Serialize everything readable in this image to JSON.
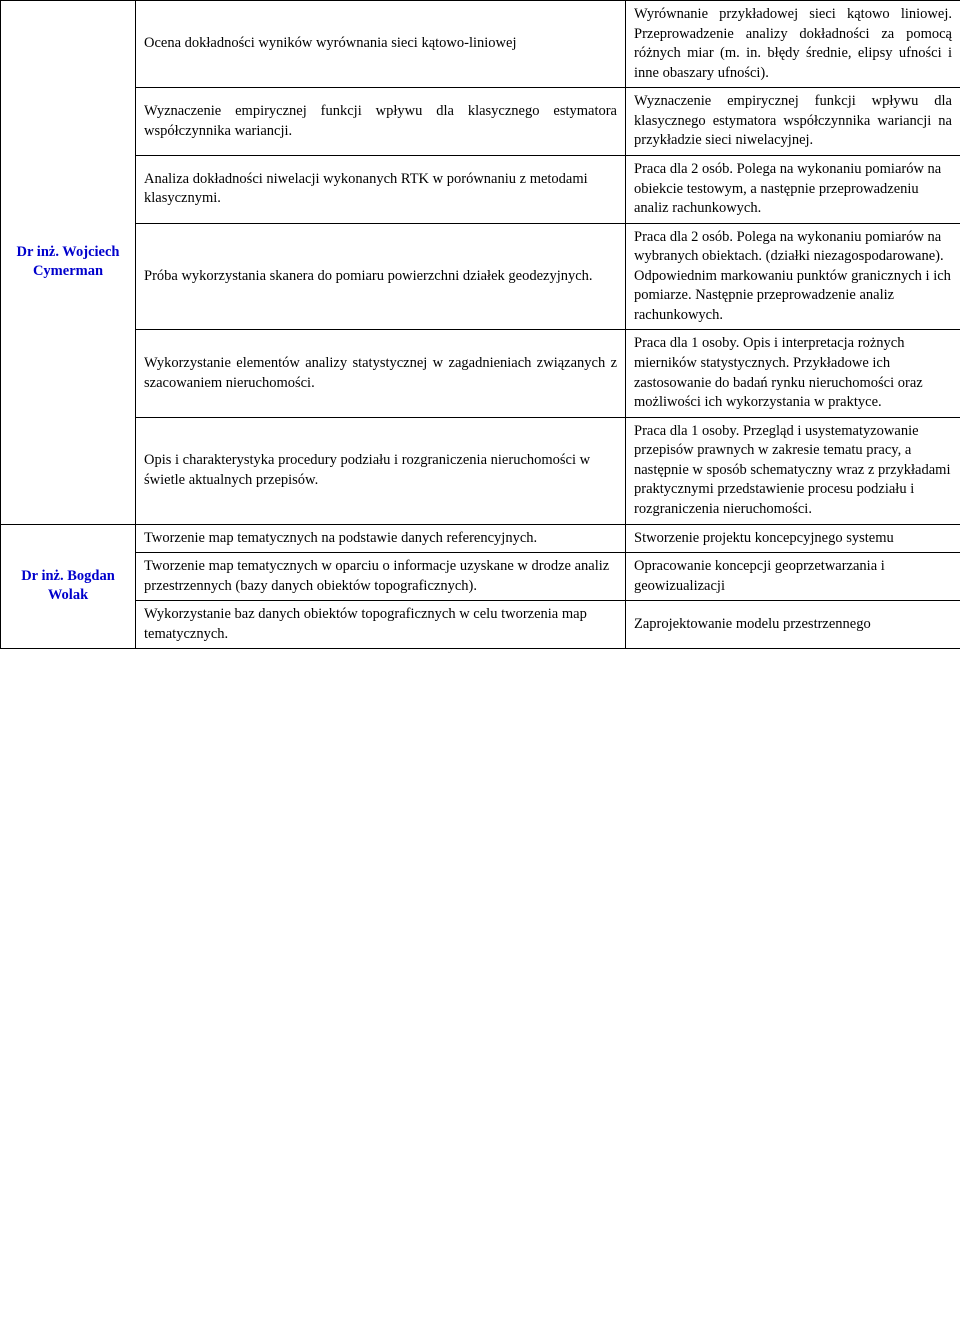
{
  "supervisors": {
    "cymerman": "Dr inż. Wojciech Cymerman",
    "wolak": "Dr inż. Bogdan Wolak"
  },
  "rows": [
    {
      "topic": "Ocena dokładności wyników wyrównania sieci kątowo-liniowej",
      "topic_align": "justify",
      "desc": "Wyrównanie przykładowej sieci kątowo liniowej. Przeprowadzenie analizy dokładności za pomocą różnych miar (m. in. błędy średnie, elipsy ufności i inne obaszary ufności).",
      "desc_align": "justify"
    },
    {
      "topic": "Wyznaczenie empirycznej funkcji wpływu dla klasycznego estymatora współczynnika wariancji.",
      "topic_align": "justify",
      "desc": "Wyznaczenie empirycznej funkcji wpływu dla klasycznego estymatora współczynnika wariancji na przykładzie sieci niwelacyjnej.",
      "desc_align": "justify"
    },
    {
      "topic": " Analiza dokładności niwelacji wykonanych RTK w porównaniu z metodami klasycznymi.",
      "topic_align": "left",
      "desc": " Praca dla 2 osób. Polega na wykonaniu pomiarów na obiekcie testowym, a następnie przeprowadzeniu analiz rachunkowych.",
      "desc_align": "left"
    },
    {
      "topic": " Próba wykorzystania skanera do pomiaru powierzchni działek geodezyjnych.",
      "topic_align": "justify",
      "desc": " Praca dla 2 osób. Polega na wykonaniu pomiarów na wybranych obiektach. (działki niezagospodarowane). Odpowiednim markowaniu punktów granicznych i ich pomiarze. Następnie przeprowadzenie analiz rachunkowych.",
      "desc_align": "left"
    },
    {
      "topic": " Wykorzystanie elementów analizy statystycznej w zagadnieniach związanych z szacowaniem nieruchomości.",
      "topic_align": "justify",
      "desc": "Praca dla 1 osoby. Opis i interpretacja rożnych mierników statystycznych. Przykładowe ich zastosowanie do badań rynku nieruchomości oraz możliwości ich wykorzystania w praktyce.",
      "desc_align": "left"
    },
    {
      "topic": " Opis i charakterystyka procedury podziału i rozgraniczenia nieruchomości w świetle aktualnych przepisów.",
      "topic_align": "left",
      "desc": "Praca dla 1 osoby. Przegląd i usystematyzowanie przepisów prawnych w zakresie tematu pracy, a następnie w sposób schematyczny wraz z przykładami praktycznymi przedstawienie procesu podziału i rozgraniczenia nieruchomości.",
      "desc_align": "left"
    },
    {
      "topic": "Tworzenie map tematycznych na podstawie danych referencyjnych.",
      "topic_align": "left",
      "desc": "Stworzenie projektu koncepcyjnego systemu",
      "desc_align": "left"
    },
    {
      "topic": "Tworzenie map tematycznych w oparciu o informacje uzyskane w drodze analiz przestrzennych (bazy danych obiektów topograficznych).",
      "topic_align": "left",
      "desc": "Opracowanie koncepcji geoprzetwarzania i geowizualizacji",
      "desc_align": "left"
    },
    {
      "topic": "Wykorzystanie baz danych obiektów topograficznych w celu tworzenia map tematycznych.",
      "topic_align": "left",
      "desc": "Zaprojektowanie modelu przestrzennego",
      "desc_align": "left"
    }
  ]
}
